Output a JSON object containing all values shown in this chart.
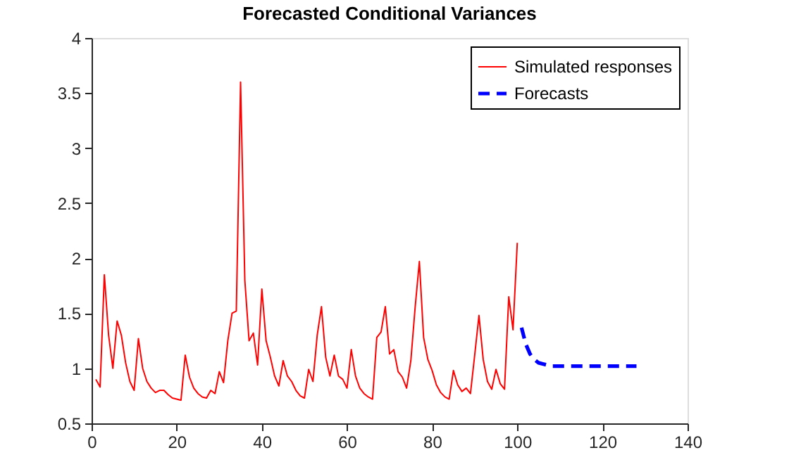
{
  "chart_data": {
    "type": "line",
    "title": "Forecasted Conditional Variances",
    "xlim": [
      0,
      140
    ],
    "xticks": [
      0,
      20,
      40,
      60,
      80,
      100,
      120,
      140
    ],
    "ylim": [
      0.5,
      4
    ],
    "yticks": [
      0.5,
      1,
      1.5,
      2,
      2.5,
      3,
      3.5,
      4
    ],
    "grid": false,
    "legend": "top right",
    "marker": "none",
    "series": [
      {
        "name": "Simulated responses",
        "color": "#ff0000",
        "line_style": "solid",
        "x": [
          1,
          2,
          3,
          4,
          5,
          6,
          7,
          8,
          9,
          10,
          11,
          12,
          13,
          14,
          15,
          16,
          17,
          18,
          19,
          20,
          21,
          22,
          23,
          24,
          25,
          26,
          27,
          28,
          29,
          30,
          31,
          32,
          33,
          34,
          35,
          36,
          37,
          38,
          39,
          40,
          41,
          42,
          43,
          44,
          45,
          46,
          47,
          48,
          49,
          50,
          51,
          52,
          53,
          54,
          55,
          56,
          57,
          58,
          59,
          60,
          61,
          62,
          63,
          64,
          65,
          66,
          67,
          68,
          69,
          70,
          71,
          72,
          73,
          74,
          75,
          76,
          77,
          78,
          79,
          80,
          81,
          82,
          83,
          84,
          85,
          86,
          87,
          88,
          89,
          90,
          91,
          92,
          93,
          94,
          95,
          96,
          97,
          98,
          99,
          100
        ],
        "values": [
          0.9,
          0.83,
          1.85,
          1.3,
          1.0,
          1.43,
          1.3,
          1.05,
          0.88,
          0.8,
          1.27,
          1.0,
          0.88,
          0.82,
          0.78,
          0.8,
          0.8,
          0.76,
          0.73,
          0.72,
          0.71,
          1.12,
          0.92,
          0.82,
          0.77,
          0.74,
          0.73,
          0.8,
          0.77,
          0.97,
          0.87,
          1.25,
          1.5,
          1.52,
          3.6,
          1.8,
          1.25,
          1.32,
          1.03,
          1.72,
          1.25,
          1.1,
          0.93,
          0.84,
          1.07,
          0.93,
          0.88,
          0.8,
          0.75,
          0.73,
          0.99,
          0.88,
          1.3,
          1.56,
          1.1,
          0.93,
          1.12,
          0.93,
          0.9,
          0.82,
          1.17,
          0.93,
          0.82,
          0.77,
          0.74,
          0.72,
          1.28,
          1.33,
          1.56,
          1.13,
          1.17,
          0.97,
          0.92,
          0.82,
          1.07,
          1.55,
          1.97,
          1.28,
          1.08,
          0.98,
          0.85,
          0.78,
          0.74,
          0.72,
          0.98,
          0.85,
          0.79,
          0.82,
          0.77,
          1.12,
          1.48,
          1.08,
          0.88,
          0.81,
          0.99,
          0.86,
          0.81,
          1.65,
          1.35,
          2.14
        ]
      },
      {
        "name": "Forecasts",
        "color": "#0000ff",
        "line_style": "dashed",
        "x": [
          101,
          102,
          103,
          104,
          105,
          106,
          107,
          108,
          110,
          112,
          114,
          116,
          118,
          120,
          122,
          124,
          126,
          128
        ],
        "values": [
          1.37,
          1.22,
          1.13,
          1.08,
          1.05,
          1.04,
          1.03,
          1.02,
          1.02,
          1.02,
          1.02,
          1.02,
          1.02,
          1.02,
          1.02,
          1.02,
          1.02,
          1.02
        ]
      }
    ]
  }
}
